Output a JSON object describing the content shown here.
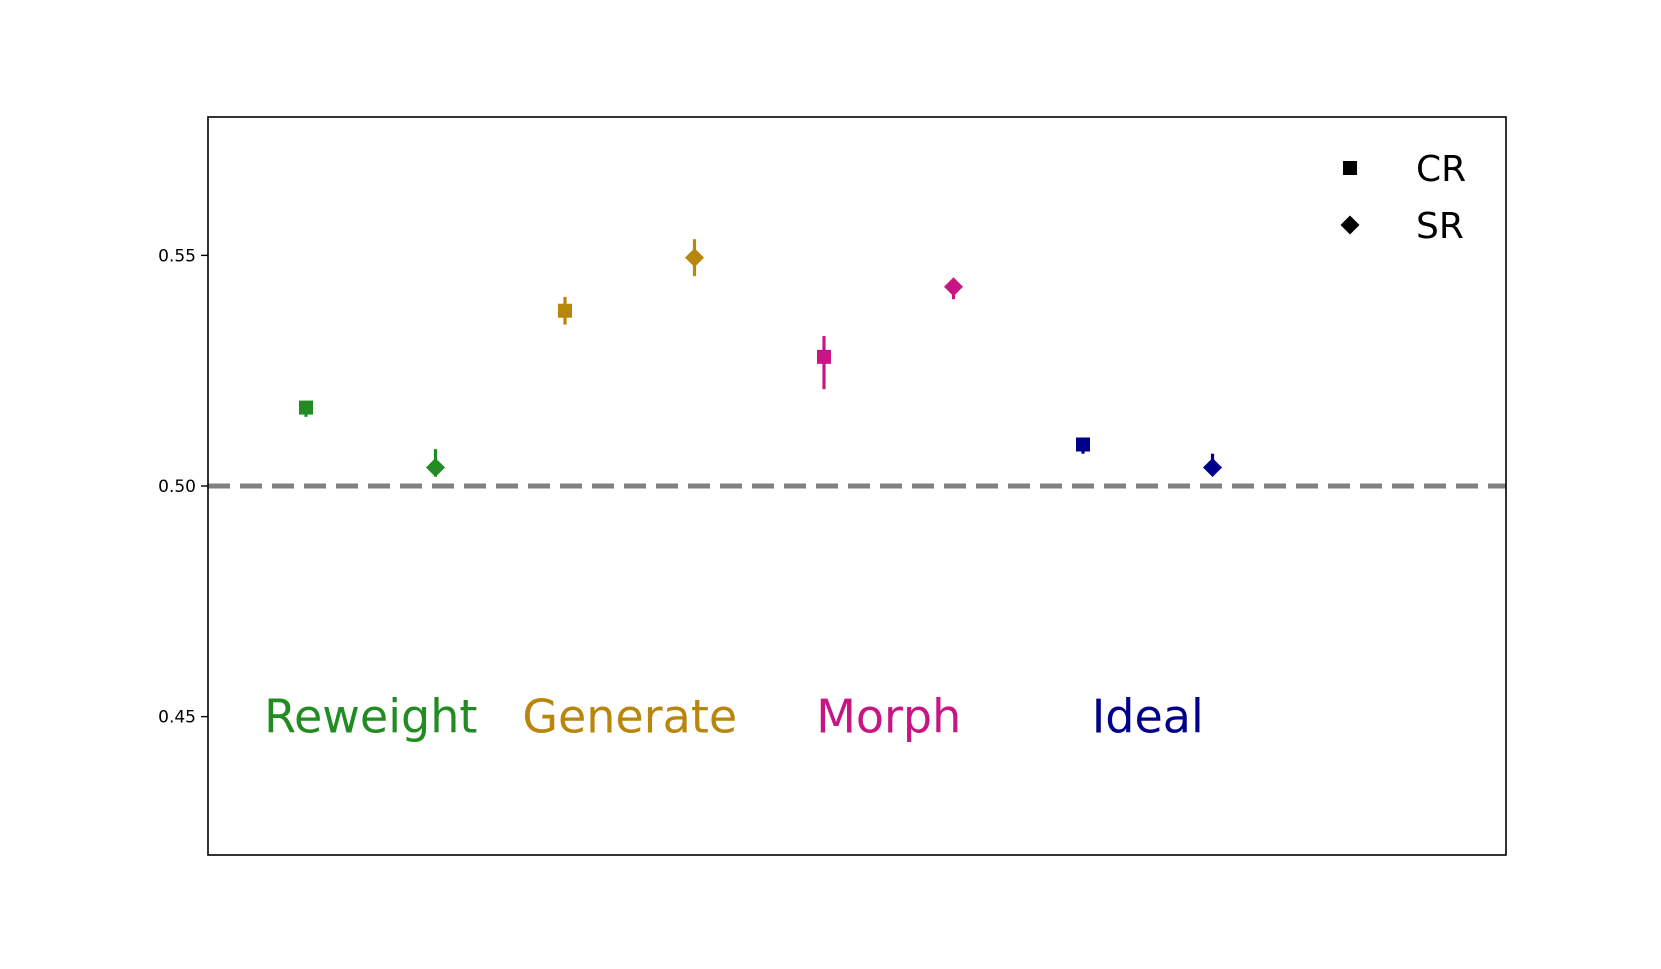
{
  "chart_data": {
    "type": "scatter",
    "title": "",
    "xlabel": "",
    "ylabel": "",
    "ylim": [
      0.42,
      0.58
    ],
    "yticks": [
      "0.45",
      "0.50",
      "0.55"
    ],
    "grid": false,
    "legend_position": "top-right",
    "reference_line": {
      "y": 0.5,
      "style": "dashed",
      "color": "#808080"
    },
    "legend": [
      {
        "label": "CR",
        "marker": "square"
      },
      {
        "label": "SR",
        "marker": "diamond"
      }
    ],
    "groups": [
      {
        "name": "Reweight",
        "color": "#228b22",
        "points": [
          {
            "metric": "CR",
            "marker": "square",
            "y": 0.517,
            "yerr": [
              0.515,
              0.518
            ]
          },
          {
            "metric": "SR",
            "marker": "diamond",
            "y": 0.504,
            "yerr": [
              0.502,
              0.508
            ]
          }
        ]
      },
      {
        "name": "Generate",
        "color": "#b8860b",
        "points": [
          {
            "metric": "CR",
            "marker": "square",
            "y": 0.538,
            "yerr": [
              0.535,
              0.541
            ]
          },
          {
            "metric": "SR",
            "marker": "diamond",
            "y": 0.5495,
            "yerr": [
              0.5455,
              0.5535
            ]
          }
        ]
      },
      {
        "name": "Morph",
        "color": "#c71585",
        "points": [
          {
            "metric": "CR",
            "marker": "square",
            "y": 0.528,
            "yerr": [
              0.521,
              0.5325
            ]
          },
          {
            "metric": "SR",
            "marker": "diamond",
            "y": 0.5432,
            "yerr": [
              0.5405,
              0.5445
            ]
          }
        ]
      },
      {
        "name": "Ideal",
        "color": "#00008b",
        "points": [
          {
            "metric": "CR",
            "marker": "square",
            "y": 0.509,
            "yerr": [
              0.507,
              0.51
            ]
          },
          {
            "metric": "SR",
            "marker": "diamond",
            "y": 0.504,
            "yerr": [
              0.503,
              0.507
            ]
          }
        ]
      }
    ]
  }
}
